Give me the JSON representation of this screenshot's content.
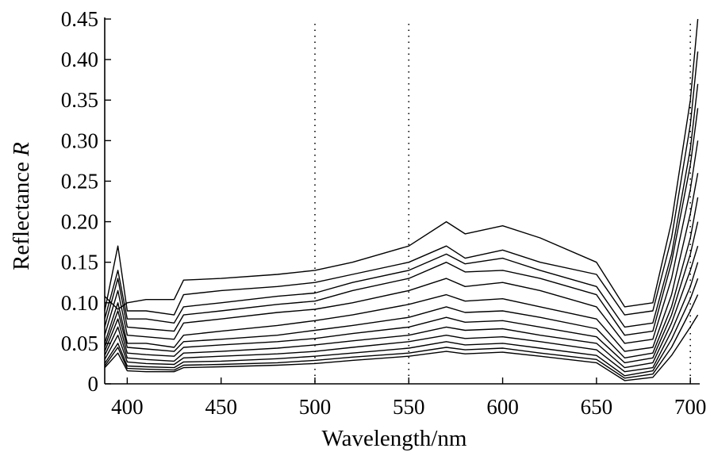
{
  "chart_data": {
    "type": "line",
    "xlabel": "Wavelength/nm",
    "ylabel": "Reflectance R",
    "ylabel_main": "Reflectance ",
    "ylabel_italic": "R",
    "xlim": [
      388,
      705
    ],
    "ylim": [
      0,
      0.45
    ],
    "x_ticks": [
      400,
      450,
      500,
      550,
      600,
      650,
      700
    ],
    "x_tick_labels": [
      "400",
      "450",
      "500",
      "550",
      "600",
      "650",
      "700"
    ],
    "y_ticks": [
      0,
      0.05,
      0.1,
      0.15,
      0.2,
      0.25,
      0.3,
      0.35,
      0.4,
      0.45
    ],
    "y_tick_labels": [
      "0",
      "0.05",
      "0.10",
      "0.15",
      "0.20",
      "0.25",
      "0.30",
      "0.35",
      "0.40",
      "0.45"
    ],
    "reference_lines_x": [
      500,
      550,
      700
    ],
    "line_color": "#000000",
    "grid": false,
    "legend": "none",
    "x": [
      388,
      395,
      400,
      410,
      425,
      430,
      450,
      480,
      500,
      520,
      550,
      570,
      580,
      600,
      620,
      650,
      665,
      680,
      690,
      700,
      704
    ],
    "series": [
      {
        "values": [
          0.108,
          0.092,
          0.1,
          0.104,
          0.104,
          0.128,
          0.13,
          0.135,
          0.14,
          0.15,
          0.17,
          0.2,
          0.185,
          0.195,
          0.18,
          0.15,
          0.095,
          0.1,
          0.2,
          0.35,
          0.45
        ]
      },
      {
        "values": [
          0.09,
          0.17,
          0.09,
          0.09,
          0.085,
          0.11,
          0.115,
          0.12,
          0.125,
          0.135,
          0.15,
          0.17,
          0.155,
          0.165,
          0.15,
          0.135,
          0.085,
          0.09,
          0.18,
          0.32,
          0.41
        ]
      },
      {
        "values": [
          0.08,
          0.14,
          0.08,
          0.08,
          0.075,
          0.095,
          0.1,
          0.108,
          0.112,
          0.125,
          0.14,
          0.16,
          0.148,
          0.155,
          0.14,
          0.12,
          0.07,
          0.075,
          0.16,
          0.29,
          0.37
        ]
      },
      {
        "values": [
          0.07,
          0.13,
          0.07,
          0.068,
          0.065,
          0.085,
          0.09,
          0.098,
          0.102,
          0.115,
          0.13,
          0.15,
          0.138,
          0.14,
          0.13,
          0.11,
          0.06,
          0.065,
          0.15,
          0.27,
          0.34
        ]
      },
      {
        "values": [
          0.06,
          0.115,
          0.06,
          0.058,
          0.055,
          0.075,
          0.08,
          0.088,
          0.092,
          0.1,
          0.115,
          0.13,
          0.12,
          0.125,
          0.115,
          0.095,
          0.05,
          0.055,
          0.13,
          0.24,
          0.3
        ]
      },
      {
        "values": [
          0.05,
          0.1,
          0.05,
          0.05,
          0.045,
          0.06,
          0.065,
          0.072,
          0.078,
          0.085,
          0.098,
          0.11,
          0.102,
          0.105,
          0.095,
          0.08,
          0.04,
          0.045,
          0.11,
          0.21,
          0.26
        ]
      },
      {
        "values": [
          0.045,
          0.09,
          0.045,
          0.043,
          0.04,
          0.052,
          0.055,
          0.06,
          0.066,
          0.072,
          0.082,
          0.095,
          0.088,
          0.09,
          0.082,
          0.068,
          0.032,
          0.038,
          0.095,
          0.18,
          0.23
        ]
      },
      {
        "values": [
          0.04,
          0.08,
          0.038,
          0.036,
          0.034,
          0.045,
          0.048,
          0.052,
          0.056,
          0.062,
          0.07,
          0.082,
          0.076,
          0.078,
          0.07,
          0.058,
          0.026,
          0.032,
          0.085,
          0.16,
          0.2
        ]
      },
      {
        "values": [
          0.035,
          0.07,
          0.032,
          0.03,
          0.028,
          0.038,
          0.04,
          0.044,
          0.048,
          0.053,
          0.06,
          0.07,
          0.066,
          0.068,
          0.06,
          0.05,
          0.02,
          0.026,
          0.075,
          0.14,
          0.17
        ]
      },
      {
        "values": [
          0.03,
          0.06,
          0.027,
          0.025,
          0.024,
          0.032,
          0.034,
          0.037,
          0.04,
          0.045,
          0.052,
          0.06,
          0.056,
          0.058,
          0.052,
          0.042,
          0.015,
          0.02,
          0.065,
          0.12,
          0.15
        ]
      },
      {
        "values": [
          0.025,
          0.05,
          0.022,
          0.021,
          0.02,
          0.027,
          0.028,
          0.031,
          0.034,
          0.038,
          0.044,
          0.052,
          0.048,
          0.05,
          0.044,
          0.035,
          0.01,
          0.016,
          0.055,
          0.105,
          0.13
        ]
      },
      {
        "values": [
          0.022,
          0.045,
          0.019,
          0.018,
          0.017,
          0.023,
          0.024,
          0.026,
          0.029,
          0.033,
          0.038,
          0.045,
          0.042,
          0.044,
          0.038,
          0.03,
          0.007,
          0.012,
          0.045,
          0.09,
          0.11
        ]
      },
      {
        "values": [
          0.02,
          0.038,
          0.016,
          0.015,
          0.015,
          0.02,
          0.021,
          0.023,
          0.025,
          0.029,
          0.034,
          0.04,
          0.037,
          0.039,
          0.034,
          0.026,
          0.004,
          0.008,
          0.035,
          0.07,
          0.085
        ]
      }
    ]
  }
}
